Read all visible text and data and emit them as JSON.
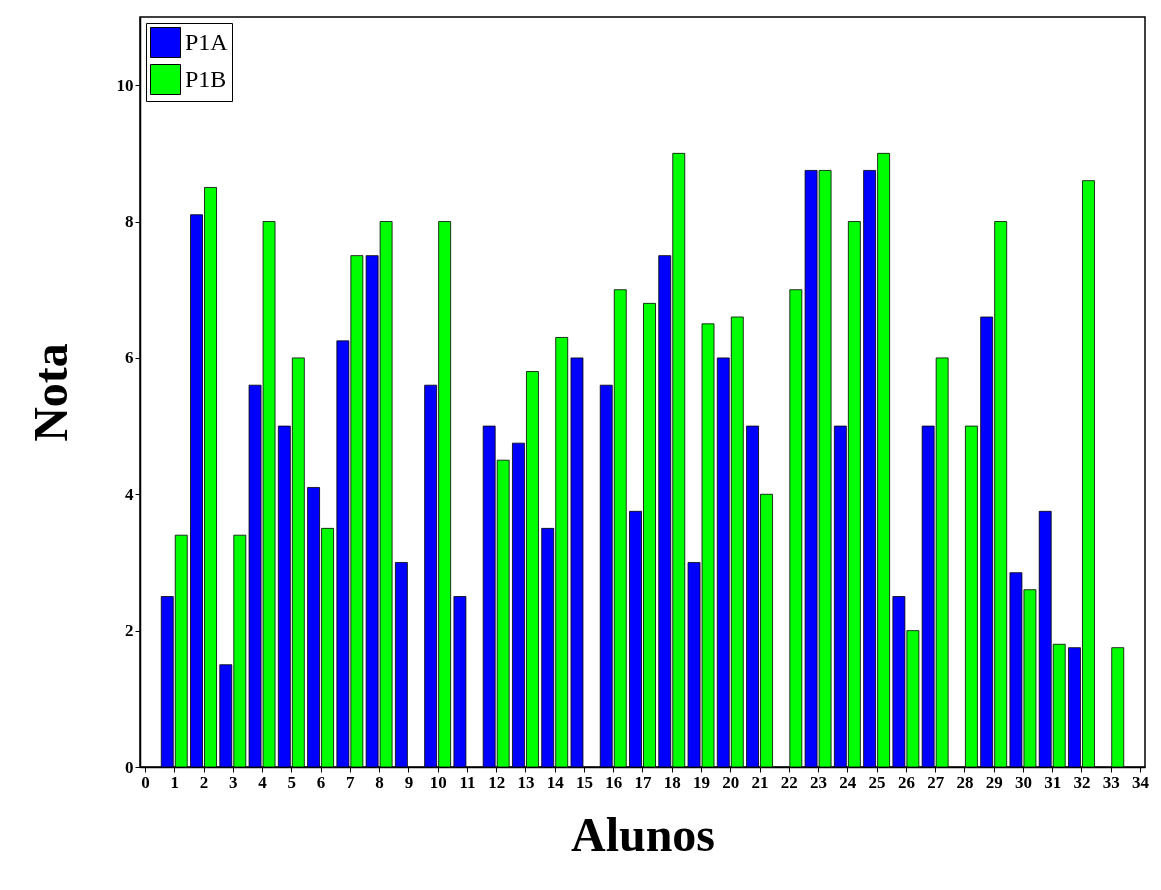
{
  "chart_data": {
    "type": "bar",
    "xlabel": "Alunos",
    "ylabel": "Nota",
    "x": [
      1,
      2,
      3,
      4,
      5,
      6,
      7,
      8,
      9,
      10,
      11,
      12,
      13,
      14,
      15,
      16,
      17,
      18,
      19,
      20,
      21,
      22,
      23,
      24,
      25,
      26,
      27,
      28,
      29,
      30,
      31,
      32,
      33
    ],
    "xlim": [
      0,
      34
    ],
    "xticks": [
      0,
      1,
      2,
      3,
      4,
      5,
      6,
      7,
      8,
      9,
      10,
      11,
      12,
      13,
      14,
      15,
      16,
      17,
      18,
      19,
      20,
      21,
      22,
      23,
      24,
      25,
      26,
      27,
      28,
      29,
      30,
      31,
      32,
      33,
      34
    ],
    "ylim": [
      0,
      11
    ],
    "yticks": [
      0,
      2,
      4,
      6,
      8,
      10
    ],
    "series": [
      {
        "name": "P1A",
        "color": "#0000ff",
        "values": [
          2.5,
          8.1,
          1.5,
          5.6,
          5,
          4.1,
          6.25,
          7.5,
          3,
          5.6,
          2.5,
          5,
          4.75,
          3.5,
          6,
          5.6,
          3.75,
          7.5,
          3,
          6,
          5,
          null,
          8.75,
          5,
          8.75,
          2.5,
          5,
          null,
          6.6,
          2.85,
          3.75,
          1.75,
          null
        ]
      },
      {
        "name": "P1B",
        "color": "#00ff00",
        "values": [
          3.4,
          8.5,
          3.4,
          8,
          6,
          3.5,
          7.5,
          8,
          null,
          8,
          null,
          4.5,
          5.8,
          6.3,
          null,
          7,
          6.8,
          9,
          6.5,
          6.6,
          4,
          7,
          8.75,
          8,
          9,
          2,
          6,
          5,
          8,
          2.6,
          1.8,
          8.6,
          1.75
        ]
      }
    ],
    "grid": false,
    "legend": "top left"
  }
}
